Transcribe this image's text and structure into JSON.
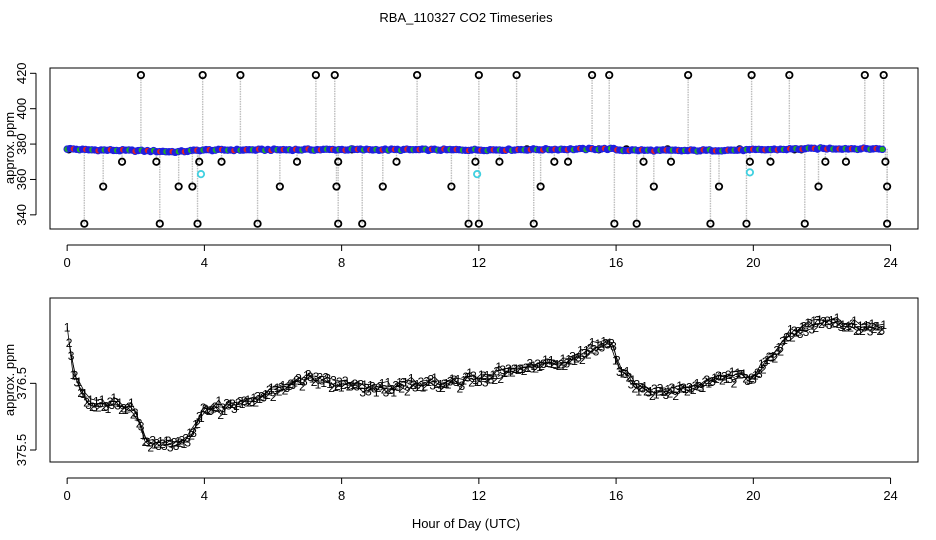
{
  "figure": {
    "title": "RBA_110327  CO2 Timeseries",
    "xlabel": "Hour of Day (UTC)"
  },
  "colors": {
    "axis": "#000000",
    "drop_line": "#bdbdbd",
    "outlier": "#000000",
    "blue": "#1f1fe0",
    "green": "#1fb01f",
    "red": "#e02020",
    "cyan": "#40d0e0",
    "series1": "#e02020",
    "series2": "#1fb01f",
    "series3": "#1f1fe0",
    "line": "#000000"
  },
  "chart_data": [
    {
      "type": "scatter",
      "title": "",
      "xlabel": "",
      "ylabel": "approx. ppm",
      "xlim": [
        -0.5,
        24.8
      ],
      "ylim": [
        332,
        423
      ],
      "xticks": [
        0,
        4,
        8,
        12,
        16,
        20,
        24
      ],
      "yticks": [
        340,
        360,
        380,
        400,
        420
      ],
      "baseline": {
        "name": "CO2 baseline (blue/green/red filled points)",
        "x_start": 0,
        "x_end": 23.8,
        "step": 0.09,
        "y_knots": [
          [
            0,
            377.4
          ],
          [
            0.5,
            376.8
          ],
          [
            2,
            376.3
          ],
          [
            3.2,
            375.6
          ],
          [
            3.9,
            376.6
          ],
          [
            6,
            376.8
          ],
          [
            8,
            376.9
          ],
          [
            12,
            376.7
          ],
          [
            15.9,
            377.3
          ],
          [
            16.1,
            376.6
          ],
          [
            18,
            376.3
          ],
          [
            20,
            376.7
          ],
          [
            22,
            377.5
          ],
          [
            23.8,
            377.3
          ]
        ]
      },
      "outliers_high": [
        2.15,
        3.95,
        5.05,
        7.25,
        7.8,
        10.2,
        12.0,
        13.1,
        15.3,
        15.8,
        18.1,
        19.95,
        21.05,
        23.25,
        23.8
      ],
      "outliers_low": [
        0.5,
        2.7,
        3.8,
        5.55,
        7.9,
        8.6,
        11.7,
        12.0,
        13.6,
        15.95,
        16.6,
        18.75,
        19.8,
        21.5,
        23.9
      ],
      "outliers_mid": [
        [
          0.05,
          377
        ],
        [
          1.05,
          356
        ],
        [
          1.6,
          370
        ],
        [
          2.6,
          370
        ],
        [
          3.25,
          356
        ],
        [
          3.65,
          356
        ],
        [
          3.85,
          370
        ],
        [
          4.5,
          370
        ],
        [
          6.2,
          356
        ],
        [
          6.7,
          370
        ],
        [
          7.85,
          356
        ],
        [
          7.9,
          370
        ],
        [
          8.3,
          377
        ],
        [
          9.2,
          356
        ],
        [
          9.6,
          370
        ],
        [
          11.2,
          356
        ],
        [
          11.9,
          370
        ],
        [
          12.6,
          370
        ],
        [
          13.4,
          377
        ],
        [
          13.8,
          356
        ],
        [
          14.2,
          370
        ],
        [
          14.6,
          370
        ],
        [
          15.5,
          377
        ],
        [
          16.3,
          377
        ],
        [
          16.8,
          370
        ],
        [
          17.1,
          356
        ],
        [
          17.5,
          377
        ],
        [
          17.6,
          370
        ],
        [
          19.0,
          356
        ],
        [
          19.6,
          377
        ],
        [
          19.9,
          370
        ],
        [
          20.5,
          370
        ],
        [
          21.2,
          377
        ],
        [
          21.4,
          377
        ],
        [
          21.9,
          356
        ],
        [
          22.7,
          370
        ],
        [
          22.1,
          370
        ],
        [
          23.85,
          370
        ],
        [
          23.9,
          356
        ]
      ],
      "cyan_points": [
        [
          3.9,
          363
        ],
        [
          11.95,
          363
        ],
        [
          19.9,
          364
        ]
      ]
    },
    {
      "type": "line",
      "title": "",
      "xlabel": "Hour of Day (UTC)",
      "ylabel": "approx. ppm",
      "xlim": [
        -0.5,
        24.8
      ],
      "ylim": [
        375.32,
        377.78
      ],
      "xticks": [
        0,
        4,
        8,
        12,
        16,
        20,
        24
      ],
      "yticks": [
        375.5,
        376.5
      ],
      "tick_labels_y": [
        "375.5",
        "376.5"
      ],
      "series": [
        {
          "name": "1",
          "offset": 0.1
        },
        {
          "name": "2",
          "offset": -0.08
        },
        {
          "name": "3",
          "offset": -0.02
        }
      ],
      "trend": {
        "x_start": 0,
        "x_end": 23.8,
        "step": 0.17,
        "y_knots": [
          [
            0,
            377.4
          ],
          [
            0.15,
            376.7
          ],
          [
            0.6,
            376.2
          ],
          [
            1.5,
            376.2
          ],
          [
            2.0,
            376.1
          ],
          [
            2.3,
            375.6
          ],
          [
            3.2,
            375.6
          ],
          [
            3.55,
            375.7
          ],
          [
            3.95,
            376.1
          ],
          [
            5.0,
            376.2
          ],
          [
            5.6,
            376.3
          ],
          [
            7.0,
            376.6
          ],
          [
            8.0,
            376.5
          ],
          [
            9.0,
            376.4
          ],
          [
            10.0,
            376.5
          ],
          [
            11.0,
            376.5
          ],
          [
            12.2,
            376.6
          ],
          [
            13.5,
            376.8
          ],
          [
            14.5,
            376.8
          ],
          [
            15.2,
            377.0
          ],
          [
            15.9,
            377.1
          ],
          [
            16.1,
            376.7
          ],
          [
            16.8,
            376.4
          ],
          [
            18.0,
            376.4
          ],
          [
            19.0,
            376.6
          ],
          [
            20.0,
            376.6
          ],
          [
            21.0,
            377.2
          ],
          [
            21.8,
            377.4
          ],
          [
            22.8,
            377.4
          ],
          [
            23.8,
            377.3
          ]
        ]
      }
    }
  ]
}
